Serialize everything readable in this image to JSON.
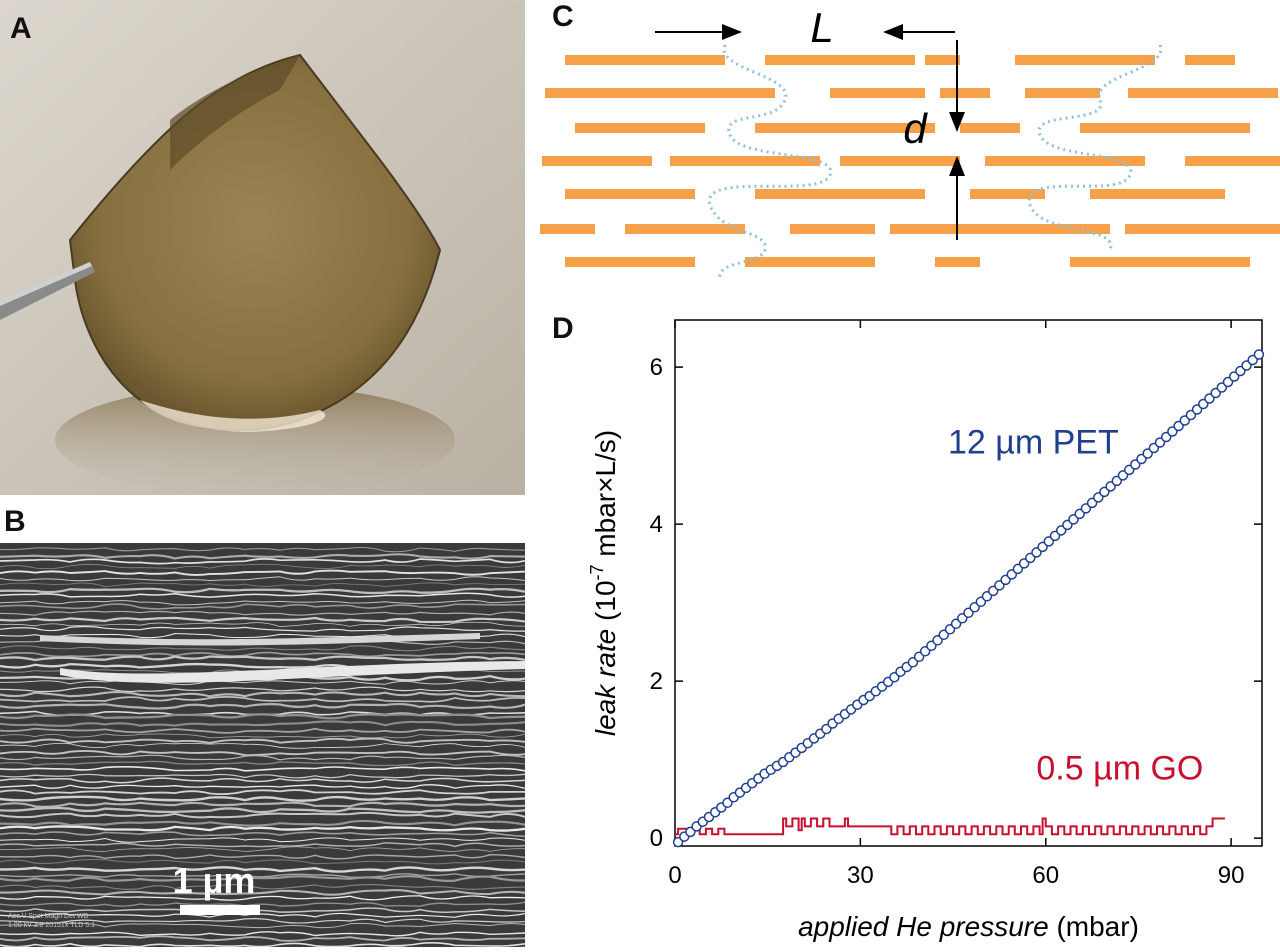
{
  "panels": {
    "a": {
      "letter": "A"
    },
    "b": {
      "letter": "B",
      "scale_bar": "1 µm",
      "sem_info": "Acc.V  Spot  Magn   Det  WD\n1.00 kV  3.0   20151x  TLD  5.1"
    },
    "c": {
      "letter": "C",
      "label_L": "L",
      "label_d": "d"
    },
    "d": {
      "letter": "D"
    }
  },
  "colors": {
    "orange": "#f7a04a",
    "dotted": "#8cc0e0",
    "pet": "#1f3f8f",
    "go": "#c8102e",
    "photo_bg": "#d8d2c8",
    "film": "#8b7245",
    "sem_bg": "#3a3a3a"
  },
  "chart_data": {
    "type": "scatter",
    "xlabel_italic": "applied He pressure",
    "xlabel_unit": " (mbar)",
    "ylabel_italic": "leak rate",
    "ylabel_unit": "  (10",
    "ylabel_exp": "-7",
    "ylabel_tail": " mbar×L/s)",
    "xlim": [
      0,
      95
    ],
    "ylim": [
      -0.1,
      6.6
    ],
    "xticks": [
      0,
      30,
      60,
      90
    ],
    "yticks": [
      0,
      2,
      4,
      6
    ],
    "series": [
      {
        "name": "12 µm PET",
        "style": "markers",
        "x": [
          0.5,
          1.5,
          2.5,
          3.5,
          4.5,
          5.5,
          6.5,
          7.5,
          8.5,
          9.5,
          10.5,
          11.5,
          12.5,
          13.5,
          14.5,
          15.5,
          16.5,
          17.5,
          18.5,
          19.5,
          20.5,
          21.5,
          22.5,
          23.5,
          24.5,
          25.5,
          26.5,
          27.5,
          28.5,
          29.5,
          30.5,
          31.5,
          32.5,
          33.5,
          34.5,
          35.5,
          36.5,
          37.5,
          38.5,
          39.5,
          40.5,
          41.5,
          42.5,
          43.5,
          44.5,
          45.5,
          46.5,
          47.5,
          48.5,
          49.5,
          50.5,
          51.5,
          52.5,
          53.5,
          54.5,
          55.5,
          56.5,
          57.5,
          58.5,
          59.5,
          60.5,
          61.5,
          62.5,
          63.5,
          64.5,
          65.5,
          66.5,
          67.5,
          68.5,
          69.5,
          70.5,
          71.5,
          72.5,
          73.5,
          74.5,
          75.5,
          76.5,
          77.5,
          78.5,
          79.5,
          80.5,
          81.5,
          82.5,
          83.5,
          84.5,
          85.5,
          86.5,
          87.5,
          88.5,
          89.5,
          90.5,
          91.5,
          92.5,
          93.5,
          94.5
        ],
        "y": [
          -0.05,
          0.02,
          0.08,
          0.15,
          0.21,
          0.27,
          0.33,
          0.39,
          0.45,
          0.52,
          0.58,
          0.64,
          0.7,
          0.76,
          0.82,
          0.87,
          0.92,
          0.97,
          1.03,
          1.09,
          1.15,
          1.21,
          1.27,
          1.33,
          1.39,
          1.46,
          1.52,
          1.58,
          1.64,
          1.7,
          1.76,
          1.81,
          1.87,
          1.93,
          1.99,
          2.05,
          2.12,
          2.18,
          2.24,
          2.31,
          2.38,
          2.45,
          2.52,
          2.59,
          2.66,
          2.73,
          2.8,
          2.87,
          2.94,
          3.01,
          3.08,
          3.15,
          3.22,
          3.29,
          3.36,
          3.43,
          3.5,
          3.57,
          3.64,
          3.71,
          3.78,
          3.85,
          3.92,
          3.99,
          4.06,
          4.13,
          4.2,
          4.27,
          4.34,
          4.41,
          4.48,
          4.55,
          4.62,
          4.69,
          4.76,
          4.83,
          4.9,
          4.97,
          5.04,
          5.11,
          5.18,
          5.25,
          5.32,
          5.39,
          5.46,
          5.53,
          5.6,
          5.67,
          5.74,
          5.81,
          5.88,
          5.95,
          6.02,
          6.09,
          6.16
        ]
      },
      {
        "name": "0.5 µm GO",
        "style": "line",
        "x": [
          0,
          0.5,
          1,
          2,
          3,
          4,
          5,
          6,
          7,
          8,
          8.5,
          9,
          10,
          12,
          14,
          16,
          17,
          17.5,
          18,
          19,
          20,
          20.5,
          21,
          22,
          23,
          24,
          25,
          26,
          27,
          27.5,
          28,
          30,
          32,
          34,
          35,
          36,
          37,
          38,
          39,
          40,
          41,
          42,
          43,
          44,
          45,
          46,
          47,
          48,
          49,
          50,
          51,
          52,
          53,
          54,
          55,
          56,
          57,
          58,
          59,
          59.5,
          60,
          61,
          62,
          63,
          64,
          65,
          66,
          67,
          68,
          69,
          70,
          71,
          72,
          73,
          74,
          75,
          76,
          77,
          78,
          79,
          80,
          81,
          82,
          83,
          84,
          85,
          86,
          87,
          88,
          89
        ],
        "y": [
          0.05,
          0.12,
          0.12,
          0.05,
          0.12,
          0.05,
          0.12,
          0.05,
          0.12,
          0.05,
          0.05,
          0.05,
          0.05,
          0.05,
          0.05,
          0.05,
          0.05,
          0.25,
          0.15,
          0.25,
          0.1,
          0.25,
          0.15,
          0.25,
          0.15,
          0.25,
          0.15,
          0.15,
          0.15,
          0.25,
          0.15,
          0.15,
          0.15,
          0.15,
          0.05,
          0.15,
          0.05,
          0.15,
          0.05,
          0.15,
          0.05,
          0.15,
          0.05,
          0.15,
          0.05,
          0.15,
          0.05,
          0.15,
          0.05,
          0.15,
          0.05,
          0.15,
          0.05,
          0.15,
          0.05,
          0.15,
          0.05,
          0.15,
          0.05,
          0.25,
          0.15,
          0.05,
          0.15,
          0.05,
          0.15,
          0.05,
          0.15,
          0.05,
          0.15,
          0.05,
          0.15,
          0.05,
          0.15,
          0.05,
          0.15,
          0.05,
          0.15,
          0.05,
          0.15,
          0.05,
          0.15,
          0.05,
          0.15,
          0.05,
          0.15,
          0.05,
          0.15,
          0.25,
          0.25,
          0.25
        ]
      }
    ],
    "annotations": [
      {
        "text": "12 µm PET",
        "x": 58,
        "y": 4.9,
        "series": 0
      },
      {
        "text": "0.5 µm GO",
        "x": 72,
        "y": 0.75,
        "series": 1
      }
    ]
  }
}
